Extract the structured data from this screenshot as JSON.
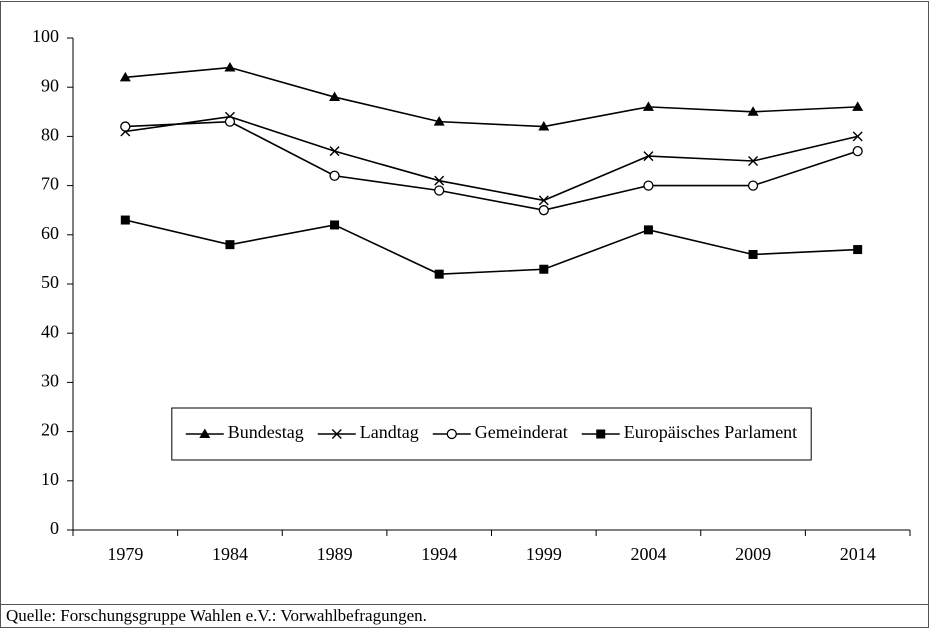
{
  "chart_data": {
    "type": "line",
    "categories": [
      "1979",
      "1984",
      "1989",
      "1994",
      "1999",
      "2004",
      "2009",
      "2014"
    ],
    "series": [
      {
        "name": "Bundestag",
        "color": "#000000",
        "marker": "triangle",
        "values": [
          92,
          94,
          88,
          83,
          82,
          86,
          85,
          86
        ]
      },
      {
        "name": "Landtag",
        "color": "#000000",
        "marker": "x",
        "values": [
          81,
          84,
          77,
          71,
          67,
          76,
          75,
          80
        ]
      },
      {
        "name": "Gemeinderat",
        "color": "#000000",
        "marker": "circle",
        "values": [
          82,
          83,
          72,
          69,
          65,
          70,
          70,
          77
        ]
      },
      {
        "name": "Europäisches Parlament",
        "color": "#000000",
        "marker": "square",
        "values": [
          63,
          58,
          62,
          52,
          53,
          61,
          56,
          57
        ]
      }
    ],
    "ylim": [
      0,
      100
    ],
    "yticks": [
      0,
      10,
      20,
      30,
      40,
      50,
      60,
      70,
      80,
      90,
      100
    ],
    "grid": false,
    "legend": "lower center",
    "source": "Quelle: Forschungsgruppe Wahlen e.V.: Vorwahlbefragungen."
  }
}
